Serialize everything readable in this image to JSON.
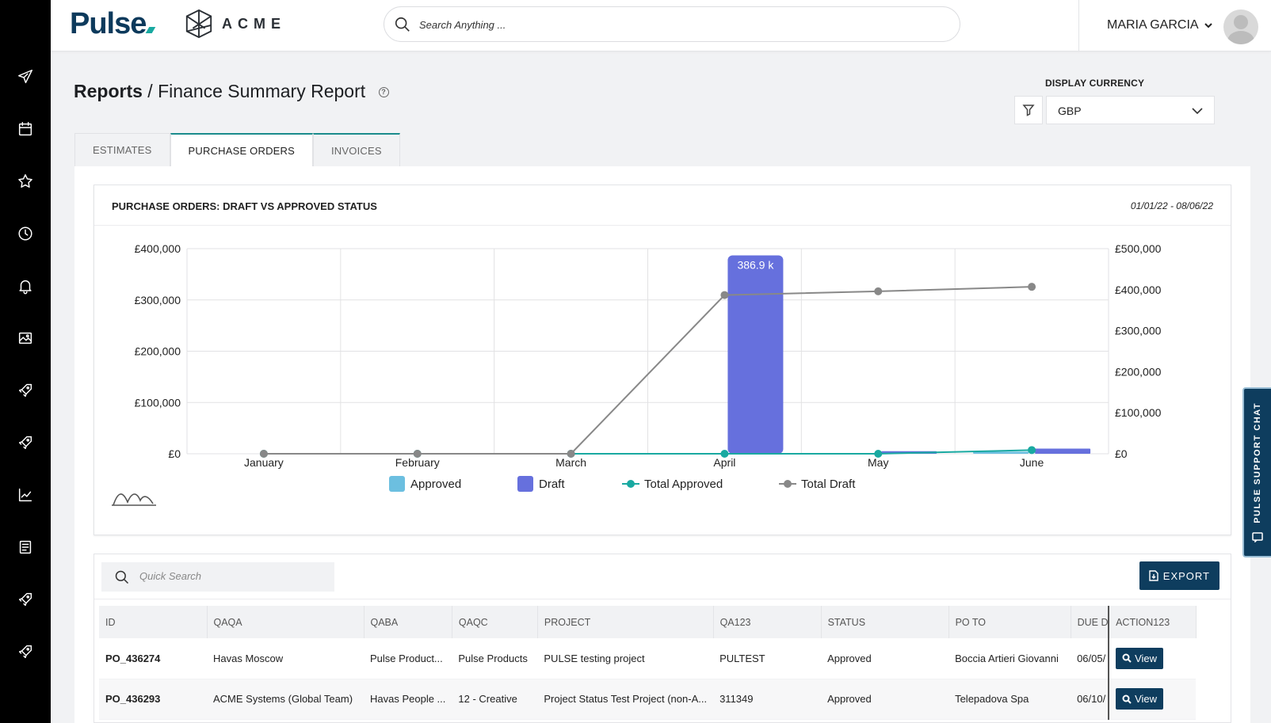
{
  "brand": {
    "app_name": "Pulse",
    "client_name": "ACME"
  },
  "search": {
    "placeholder": "Search Anything ..."
  },
  "user": {
    "name": "MARIA GARCIA"
  },
  "sidebar": {
    "items": [
      {
        "icon": "paper-plane-icon"
      },
      {
        "icon": "calendar-icon"
      },
      {
        "icon": "star-icon"
      },
      {
        "icon": "clock-icon"
      },
      {
        "icon": "bell-icon"
      },
      {
        "icon": "image-icon"
      },
      {
        "icon": "rocket-icon"
      },
      {
        "icon": "rocket-icon"
      },
      {
        "icon": "chart-line-icon"
      },
      {
        "icon": "document-icon"
      },
      {
        "icon": "rocket-icon"
      },
      {
        "icon": "rocket-icon"
      }
    ]
  },
  "header": {
    "breadcrumb_root": "Reports",
    "separator": "/",
    "title": "Finance Summary Report"
  },
  "currency": {
    "label": "DISPLAY CURRENCY",
    "selected": "GBP"
  },
  "tabs": [
    {
      "label": "ESTIMATES",
      "active": false
    },
    {
      "label": "PURCHASE ORDERS",
      "active": true
    },
    {
      "label": "INVOICES",
      "active": false
    }
  ],
  "chart_card": {
    "title": "PURCHASE ORDERS: DRAFT VS APPROVED STATUS",
    "date_range": "01/01/22 - 08/06/22"
  },
  "chart_data": {
    "type": "bar",
    "categories": [
      "January",
      "February",
      "March",
      "April",
      "May",
      "June"
    ],
    "y_left": {
      "ticks": [
        "£0",
        "£100,000",
        "£200,000",
        "£300,000",
        "£400,000"
      ],
      "ylim": [
        0,
        400000
      ]
    },
    "y_right": {
      "ticks": [
        "£0",
        "£100,000",
        "£200,000",
        "£300,000",
        "£400,000",
        "£500,000"
      ],
      "ylim": [
        0,
        500000
      ]
    },
    "series": [
      {
        "name": "Approved",
        "type": "bar",
        "axis": "left",
        "color": "#6cbfe0",
        "values": [
          0,
          0,
          0,
          0,
          0,
          4000
        ]
      },
      {
        "name": "Draft",
        "type": "bar",
        "axis": "left",
        "color": "#6670dd",
        "values": [
          0,
          0,
          0,
          386900,
          5000,
          10000
        ]
      },
      {
        "name": "Total Approved",
        "type": "line",
        "axis": "right",
        "color": "#19a9a1",
        "values": [
          0,
          0,
          0,
          0,
          0,
          9000
        ]
      },
      {
        "name": "Total Draft",
        "type": "line",
        "axis": "right",
        "color": "#888888",
        "values": [
          0,
          0,
          0,
          386900,
          396000,
          407000
        ]
      }
    ],
    "data_labels": [
      {
        "category": "April",
        "series": "Draft",
        "text": "386.9 k"
      }
    ],
    "legend": "bottom",
    "grid": true
  },
  "table": {
    "quick_search_placeholder": "Quick Search",
    "export_label": "EXPORT",
    "columns": [
      "ID",
      "QAQA",
      "QABA",
      "QAQC",
      "PROJECT",
      "QA123",
      "STATUS",
      "PO TO",
      "DUE DA",
      "ACTION123"
    ],
    "rows": [
      [
        "PO_436274",
        "Havas Moscow",
        "Pulse Product...",
        "Pulse Products",
        "PULSE testing project",
        "PULTEST",
        "Approved",
        "Boccia Artieri Giovanni",
        "06/05/",
        "View"
      ],
      [
        "PO_436293",
        "ACME Systems (Global Team)",
        "Havas People ...",
        "12 - Creative",
        "Project Status Test Project (non-A...",
        "311349",
        "Approved",
        "Telepadova Spa",
        "06/10/",
        "View"
      ]
    ]
  },
  "support_chat": {
    "label": "PULSE SUPPORT CHAT"
  }
}
